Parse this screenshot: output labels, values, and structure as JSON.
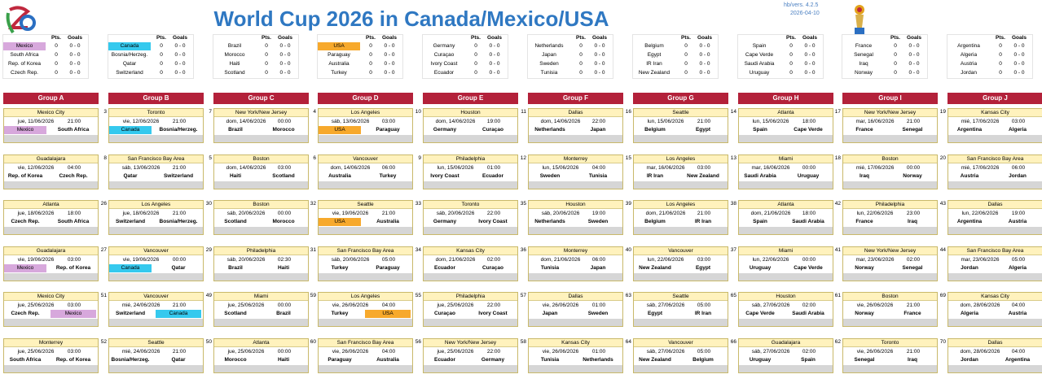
{
  "header": {
    "title": "World Cup 2026 in Canada/Mexico/USA",
    "version": "hb/vers. 4.2.5",
    "date": "2026-04-10"
  },
  "standings_headers": {
    "pts": "Pts.",
    "goals": "Goals"
  },
  "highlights": [
    {
      "team": "Mexico",
      "color": "#d7a8dc"
    },
    {
      "team": "Canada",
      "color": "#35c9ee"
    },
    {
      "team": "USA",
      "color": "#f7a92c"
    }
  ],
  "groups": [
    {
      "name": "Group A",
      "teams": [
        {
          "name": "Mexico",
          "pts": 0,
          "goals": "0 - 0"
        },
        {
          "name": "South Africa",
          "pts": 0,
          "goals": "0 - 0"
        },
        {
          "name": "Rep. of Korea",
          "pts": 0,
          "goals": "0 - 0"
        },
        {
          "name": "Czech Rep.",
          "pts": 0,
          "goals": "0 - 0"
        }
      ],
      "matches": [
        {
          "venue": "Mexico City",
          "day": "jue, 11/06/2026",
          "time": "21:00",
          "home": "Mexico",
          "away": "South Africa"
        },
        {
          "venue": "Guadalajara",
          "day": "vie, 12/06/2026",
          "time": "04:00",
          "home": "Rep. of Korea",
          "away": "Czech Rep."
        },
        {
          "venue": "Atlanta",
          "day": "jue, 18/06/2026",
          "time": "18:00",
          "home": "Czech Rep.",
          "away": "South Africa"
        },
        {
          "venue": "Guadalajara",
          "day": "vie, 19/06/2026",
          "time": "03:00",
          "home": "Mexico",
          "away": "Rep. of Korea"
        },
        {
          "venue": "Mexico City",
          "day": "jue, 25/06/2026",
          "time": "03:00",
          "home": "Czech Rep.",
          "away": "Mexico"
        },
        {
          "venue": "Monterrey",
          "day": "jue, 25/06/2026",
          "time": "03:00",
          "home": "South Africa",
          "away": "Rep. of Korea"
        }
      ]
    },
    {
      "name": "Group B",
      "teams": [
        {
          "name": "Canada",
          "pts": 0,
          "goals": "0 - 0"
        },
        {
          "name": "Bosnia/Herzeg.",
          "pts": 0,
          "goals": "0 - 0"
        },
        {
          "name": "Qatar",
          "pts": 0,
          "goals": "0 - 0"
        },
        {
          "name": "Switzerland",
          "pts": 0,
          "goals": "0 - 0"
        }
      ],
      "matches": [
        {
          "no": 3,
          "venue": "Toronto",
          "day": "vie, 12/06/2026",
          "time": "21:00",
          "home": "Canada",
          "away": "Bosnia/Herzeg."
        },
        {
          "no": 8,
          "venue": "San Francisco Bay Area",
          "day": "sáb, 13/06/2026",
          "time": "21:00",
          "home": "Qatar",
          "away": "Switzerland"
        },
        {
          "no": 26,
          "venue": "Los Angeles",
          "day": "jue, 18/06/2026",
          "time": "21:00",
          "home": "Switzerland",
          "away": "Bosnia/Herzeg."
        },
        {
          "no": 27,
          "venue": "Vancouver",
          "day": "vie, 19/06/2026",
          "time": "00:00",
          "home": "Canada",
          "away": "Qatar"
        },
        {
          "no": 51,
          "venue": "Vancouver",
          "day": "mié, 24/06/2026",
          "time": "21:00",
          "home": "Switzerland",
          "away": "Canada"
        },
        {
          "no": 52,
          "venue": "Seattle",
          "day": "mié, 24/06/2026",
          "time": "21:00",
          "home": "Bosnia/Herzeg.",
          "away": "Qatar"
        }
      ]
    },
    {
      "name": "Group C",
      "teams": [
        {
          "name": "Brazil",
          "pts": 0,
          "goals": "0 - 0"
        },
        {
          "name": "Morocco",
          "pts": 0,
          "goals": "0 - 0"
        },
        {
          "name": "Haiti",
          "pts": 0,
          "goals": "0 - 0"
        },
        {
          "name": "Scotland",
          "pts": 0,
          "goals": "0 - 0"
        }
      ],
      "matches": [
        {
          "no": 7,
          "venue": "New York/New Jersey",
          "day": "dom, 14/06/2026",
          "time": "00:00",
          "home": "Brazil",
          "away": "Morocco"
        },
        {
          "no": 5,
          "venue": "Boston",
          "day": "dom, 14/06/2026",
          "time": "03:00",
          "home": "Haiti",
          "away": "Scotland"
        },
        {
          "no": 30,
          "venue": "Boston",
          "day": "sáb, 20/06/2026",
          "time": "00:00",
          "home": "Scotland",
          "away": "Morocco"
        },
        {
          "no": 29,
          "venue": "Philadelphia",
          "day": "sáb, 20/06/2026",
          "time": "02:30",
          "home": "Brazil",
          "away": "Haiti"
        },
        {
          "no": 49,
          "venue": "Miami",
          "day": "jue, 25/06/2026",
          "time": "00:00",
          "home": "Scotland",
          "away": "Brazil"
        },
        {
          "no": 50,
          "venue": "Atlanta",
          "day": "jue, 25/06/2026",
          "time": "00:00",
          "home": "Morocco",
          "away": "Haiti"
        }
      ]
    },
    {
      "name": "Group D",
      "teams": [
        {
          "name": "USA",
          "pts": 0,
          "goals": "0 - 0"
        },
        {
          "name": "Paraguay",
          "pts": 0,
          "goals": "0 - 0"
        },
        {
          "name": "Australia",
          "pts": 0,
          "goals": "0 - 0"
        },
        {
          "name": "Turkey",
          "pts": 0,
          "goals": "0 - 0"
        }
      ],
      "matches": [
        {
          "no": 4,
          "venue": "Los Angeles",
          "day": "sáb, 13/06/2026",
          "time": "03:00",
          "home": "USA",
          "away": "Paraguay"
        },
        {
          "no": 6,
          "venue": "Vancouver",
          "day": "dom, 14/06/2026",
          "time": "06:00",
          "home": "Australia",
          "away": "Turkey"
        },
        {
          "no": 32,
          "venue": "Seattle",
          "day": "vie, 19/06/2026",
          "time": "21:00",
          "home": "USA",
          "away": "Australia"
        },
        {
          "no": 31,
          "venue": "San Francisco Bay Area",
          "day": "sáb, 20/06/2026",
          "time": "05:00",
          "home": "Turkey",
          "away": "Paraguay"
        },
        {
          "no": 59,
          "venue": "Los Angeles",
          "day": "vie, 26/06/2026",
          "time": "04:00",
          "home": "Turkey",
          "away": "USA"
        },
        {
          "no": 60,
          "venue": "San Francisco Bay Area",
          "day": "vie, 26/06/2026",
          "time": "04:00",
          "home": "Paraguay",
          "away": "Australia"
        }
      ]
    },
    {
      "name": "Group E",
      "teams": [
        {
          "name": "Germany",
          "pts": 0,
          "goals": "0 - 0"
        },
        {
          "name": "Curaçao",
          "pts": 0,
          "goals": "0 - 0"
        },
        {
          "name": "Ivory Coast",
          "pts": 0,
          "goals": "0 - 0"
        },
        {
          "name": "Ecuador",
          "pts": 0,
          "goals": "0 - 0"
        }
      ],
      "matches": [
        {
          "no": 10,
          "venue": "Houston",
          "day": "dom, 14/06/2026",
          "time": "19:00",
          "home": "Germany",
          "away": "Curaçao"
        },
        {
          "no": 9,
          "venue": "Philadelphia",
          "day": "lun, 15/06/2026",
          "time": "01:00",
          "home": "Ivory Coast",
          "away": "Ecuador"
        },
        {
          "no": 33,
          "venue": "Toronto",
          "day": "sáb, 20/06/2026",
          "time": "22:00",
          "home": "Germany",
          "away": "Ivory Coast"
        },
        {
          "no": 34,
          "venue": "Kansas City",
          "day": "dom, 21/06/2026",
          "time": "02:00",
          "home": "Ecuador",
          "away": "Curaçao"
        },
        {
          "no": 55,
          "venue": "Philadelphia",
          "day": "jue, 25/06/2026",
          "time": "22:00",
          "home": "Curaçao",
          "away": "Ivory Coast"
        },
        {
          "no": 56,
          "venue": "New York/New Jersey",
          "day": "jue, 25/06/2026",
          "time": "22:00",
          "home": "Ecuador",
          "away": "Germany"
        }
      ]
    },
    {
      "name": "Group F",
      "teams": [
        {
          "name": "Netherlands",
          "pts": 0,
          "goals": "0 - 0"
        },
        {
          "name": "Japan",
          "pts": 0,
          "goals": "0 - 0"
        },
        {
          "name": "Sweden",
          "pts": 0,
          "goals": "0 - 0"
        },
        {
          "name": "Tunisia",
          "pts": 0,
          "goals": "0 - 0"
        }
      ],
      "matches": [
        {
          "no": 11,
          "venue": "Dallas",
          "day": "dom, 14/06/2026",
          "time": "22:00",
          "home": "Netherlands",
          "away": "Japan"
        },
        {
          "no": 12,
          "venue": "Monterrey",
          "day": "lun, 15/06/2026",
          "time": "04:00",
          "home": "Sweden",
          "away": "Tunisia"
        },
        {
          "no": 35,
          "venue": "Houston",
          "day": "sáb, 20/06/2026",
          "time": "19:00",
          "home": "Netherlands",
          "away": "Sweden"
        },
        {
          "no": 36,
          "venue": "Monterrey",
          "day": "dom, 21/06/2026",
          "time": "06:00",
          "home": "Tunisia",
          "away": "Japan"
        },
        {
          "no": 57,
          "venue": "Dallas",
          "day": "vie, 26/06/2026",
          "time": "01:00",
          "home": "Japan",
          "away": "Sweden"
        },
        {
          "no": 58,
          "venue": "Kansas City",
          "day": "vie, 26/06/2026",
          "time": "01:00",
          "home": "Tunisia",
          "away": "Netherlands"
        }
      ]
    },
    {
      "name": "Group G",
      "teams": [
        {
          "name": "Belgium",
          "pts": 0,
          "goals": "0 - 0"
        },
        {
          "name": "Egypt",
          "pts": 0,
          "goals": "0 - 0"
        },
        {
          "name": "IR Iran",
          "pts": 0,
          "goals": "0 - 0"
        },
        {
          "name": "New Zealand",
          "pts": 0,
          "goals": "0 - 0"
        }
      ],
      "matches": [
        {
          "no": 16,
          "venue": "Seattle",
          "day": "lun, 15/06/2026",
          "time": "21:00",
          "home": "Belgium",
          "away": "Egypt"
        },
        {
          "no": 15,
          "venue": "Los Angeles",
          "day": "mar, 16/06/2026",
          "time": "03:00",
          "home": "IR Iran",
          "away": "New Zealand"
        },
        {
          "no": 39,
          "venue": "Los Angeles",
          "day": "dom, 21/06/2026",
          "time": "21:00",
          "home": "Belgium",
          "away": "IR Iran"
        },
        {
          "no": 40,
          "venue": "Vancouver",
          "day": "lun, 22/06/2026",
          "time": "03:00",
          "home": "New Zealand",
          "away": "Egypt"
        },
        {
          "no": 63,
          "venue": "Seattle",
          "day": "sáb, 27/06/2026",
          "time": "05:00",
          "home": "Egypt",
          "away": "IR Iran"
        },
        {
          "no": 64,
          "venue": "Vancouver",
          "day": "sáb, 27/06/2026",
          "time": "05:00",
          "home": "New Zealand",
          "away": "Belgium"
        }
      ]
    },
    {
      "name": "Group H",
      "teams": [
        {
          "name": "Spain",
          "pts": 0,
          "goals": "0 - 0"
        },
        {
          "name": "Cape Verde",
          "pts": 0,
          "goals": "0 - 0"
        },
        {
          "name": "Saudi Arabia",
          "pts": 0,
          "goals": "0 - 0"
        },
        {
          "name": "Uruguay",
          "pts": 0,
          "goals": "0 - 0"
        }
      ],
      "matches": [
        {
          "no": 14,
          "venue": "Atlanta",
          "day": "lun, 15/06/2026",
          "time": "18:00",
          "home": "Spain",
          "away": "Cape Verde"
        },
        {
          "no": 13,
          "venue": "Miami",
          "day": "mar, 16/06/2026",
          "time": "00:00",
          "home": "Saudi Arabia",
          "away": "Uruguay"
        },
        {
          "no": 38,
          "venue": "Atlanta",
          "day": "dom, 21/06/2026",
          "time": "18:00",
          "home": "Spain",
          "away": "Saudi Arabia"
        },
        {
          "no": 37,
          "venue": "Miami",
          "day": "lun, 22/06/2026",
          "time": "00:00",
          "home": "Uruguay",
          "away": "Cape Verde"
        },
        {
          "no": 65,
          "venue": "Houston",
          "day": "sáb, 27/06/2026",
          "time": "02:00",
          "home": "Cape Verde",
          "away": "Saudi Arabia"
        },
        {
          "no": 66,
          "venue": "Guadalajara",
          "day": "sáb, 27/06/2026",
          "time": "02:00",
          "home": "Uruguay",
          "away": "Spain"
        }
      ]
    },
    {
      "name": "Group I",
      "teams": [
        {
          "name": "France",
          "pts": 0,
          "goals": "0 - 0"
        },
        {
          "name": "Senegal",
          "pts": 0,
          "goals": "0 - 0"
        },
        {
          "name": "Iraq",
          "pts": 0,
          "goals": "0 - 0"
        },
        {
          "name": "Norway",
          "pts": 0,
          "goals": "0 - 0"
        }
      ],
      "matches": [
        {
          "no": 17,
          "venue": "New York/New Jersey",
          "day": "mar, 16/06/2026",
          "time": "21:00",
          "home": "France",
          "away": "Senegal"
        },
        {
          "no": 18,
          "venue": "Boston",
          "day": "mié, 17/06/2026",
          "time": "00:00",
          "home": "Iraq",
          "away": "Norway"
        },
        {
          "no": 42,
          "venue": "Philadelphia",
          "day": "lun, 22/06/2026",
          "time": "23:00",
          "home": "France",
          "away": "Iraq"
        },
        {
          "no": 41,
          "venue": "New York/New Jersey",
          "day": "mar, 23/06/2026",
          "time": "02:00",
          "home": "Norway",
          "away": "Senegal"
        },
        {
          "no": 61,
          "venue": "Boston",
          "day": "vie, 26/06/2026",
          "time": "21:00",
          "home": "Norway",
          "away": "France"
        },
        {
          "no": 62,
          "venue": "Toronto",
          "day": "vie, 26/06/2026",
          "time": "21:00",
          "home": "Senegal",
          "away": "Iraq"
        }
      ]
    },
    {
      "name": "Group J",
      "teams": [
        {
          "name": "Argentina",
          "pts": 0,
          "goals": "0 - 0"
        },
        {
          "name": "Algeria",
          "pts": 0,
          "goals": "0 - 0"
        },
        {
          "name": "Austria",
          "pts": 0,
          "goals": "0 - 0"
        },
        {
          "name": "Jordan",
          "pts": 0,
          "goals": "0 - 0"
        }
      ],
      "matches": [
        {
          "no": 19,
          "venue": "Kansas City",
          "day": "mié, 17/06/2026",
          "time": "03:00",
          "home": "Argentina",
          "away": "Algeria"
        },
        {
          "no": 20,
          "venue": "San Francisco Bay Area",
          "day": "mié, 17/06/2026",
          "time": "06:00",
          "home": "Austria",
          "away": "Jordan"
        },
        {
          "no": 43,
          "venue": "Dallas",
          "day": "lun, 22/06/2026",
          "time": "19:00",
          "home": "Argentina",
          "away": "Austria"
        },
        {
          "no": 44,
          "venue": "San Francisco Bay Area",
          "day": "mar, 23/06/2026",
          "time": "05:00",
          "home": "Jordan",
          "away": "Algeria"
        },
        {
          "no": 69,
          "venue": "Kansas City",
          "day": "dom, 28/06/2026",
          "time": "04:00",
          "home": "Algeria",
          "away": "Austria"
        },
        {
          "no": 70,
          "venue": "Dallas",
          "day": "dom, 28/06/2026",
          "time": "04:00",
          "home": "Jordan",
          "away": "Argentina"
        }
      ]
    }
  ]
}
